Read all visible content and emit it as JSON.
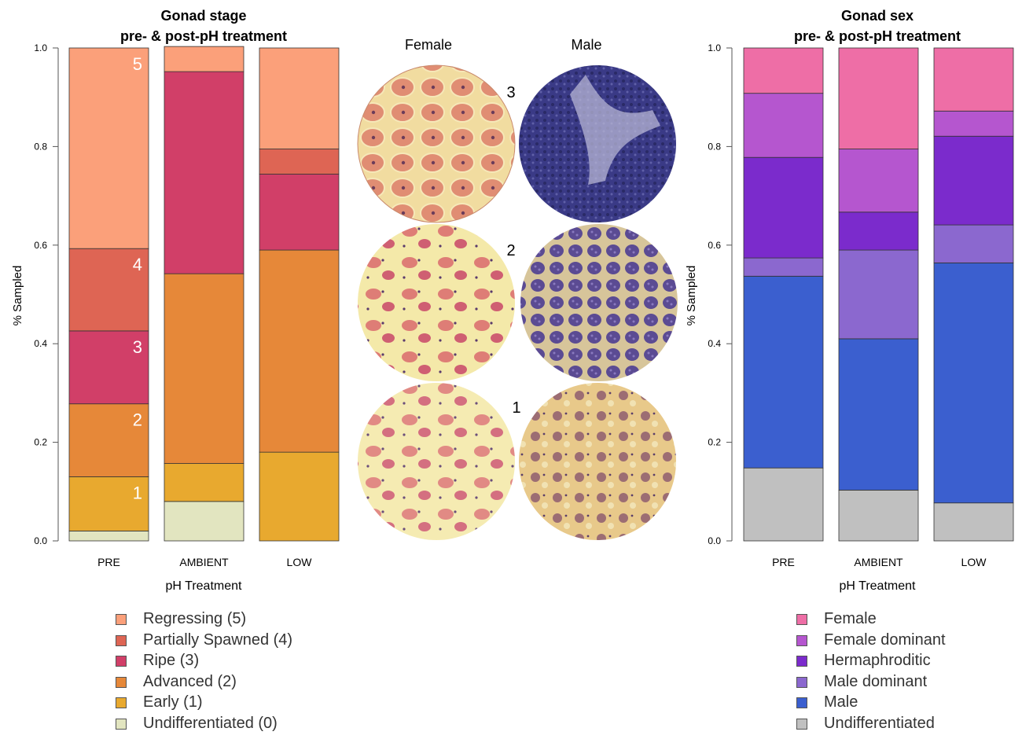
{
  "chart_data": [
    {
      "type": "bar",
      "stacked": true,
      "title": "Gonad stage",
      "subtitle": "pre- & post-pH treatment",
      "xlabel": "pH Treatment",
      "ylabel": "% Sampled",
      "ylim": [
        0,
        1
      ],
      "yticks": [
        "0.0",
        "0.2",
        "0.4",
        "0.6",
        "0.8",
        "1.0"
      ],
      "categories": [
        "PRE",
        "AMBIENT",
        "LOW"
      ],
      "series": [
        {
          "name": "Undifferentiated (0)",
          "color": "#e2e5c0",
          "values": [
            0.02,
            0.08,
            0.0
          ]
        },
        {
          "name": "Early (1)",
          "color": "#e8a92f",
          "values": [
            0.11,
            0.077,
            0.18
          ]
        },
        {
          "name": "Advanced (2)",
          "color": "#e68839",
          "values": [
            0.148,
            0.385,
            0.41
          ]
        },
        {
          "name": "Ripe (3)",
          "color": "#d13f68",
          "values": [
            0.148,
            0.41,
            0.154
          ]
        },
        {
          "name": "Partially Spawned (4)",
          "color": "#de6554",
          "values": [
            0.167,
            0.0,
            0.051
          ]
        },
        {
          "name": "Regressing (5)",
          "color": "#fba07a",
          "values": [
            0.407,
            0.051,
            0.205
          ]
        }
      ],
      "bar_annotations": [
        "1",
        "2",
        "3",
        "4",
        "5"
      ]
    },
    {
      "type": "bar",
      "stacked": true,
      "title": "Gonad sex",
      "subtitle": "pre- & post-pH treatment",
      "xlabel": "pH Treatment",
      "ylabel": "% Sampled",
      "ylim": [
        0,
        1
      ],
      "yticks": [
        "0.0",
        "0.2",
        "0.4",
        "0.6",
        "0.8",
        "1.0"
      ],
      "categories": [
        "PRE",
        "AMBIENT",
        "LOW"
      ],
      "series": [
        {
          "name": "Undifferentiated",
          "color": "#c0c0c0",
          "values": [
            0.148,
            0.103,
            0.077
          ]
        },
        {
          "name": "Male",
          "color": "#3b5fcf",
          "values": [
            0.389,
            0.307,
            0.487
          ]
        },
        {
          "name": "Male dominant",
          "color": "#8b68cf",
          "values": [
            0.037,
            0.18,
            0.077
          ]
        },
        {
          "name": "Hermaphroditic",
          "color": "#7b2bcc",
          "values": [
            0.204,
            0.077,
            0.18
          ]
        },
        {
          "name": "Female dominant",
          "color": "#b556cf",
          "values": [
            0.13,
            0.128,
            0.051
          ]
        },
        {
          "name": "Female",
          "color": "#ee6ea6",
          "values": [
            0.092,
            0.205,
            0.128
          ]
        }
      ]
    }
  ],
  "micrographs": {
    "column_labels": [
      "Female",
      "Male"
    ],
    "row_labels": [
      "3",
      "2",
      "1"
    ]
  }
}
